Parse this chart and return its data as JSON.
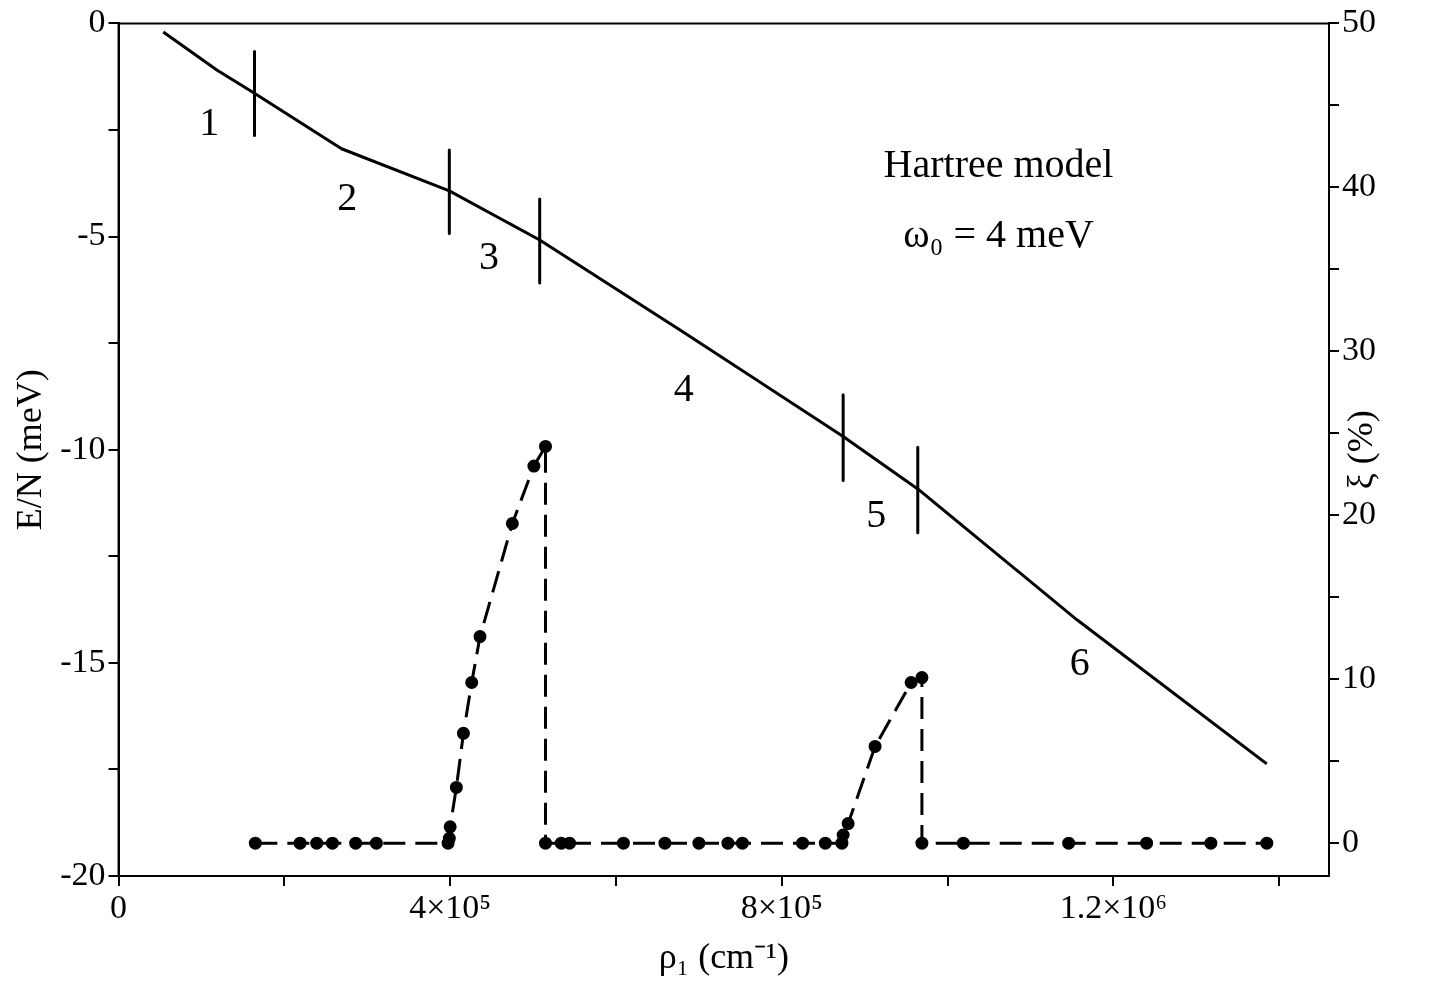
{
  "chart_data": {
    "type": "line",
    "xlabel": "ρ₁ (cm⁻¹)",
    "ylabel": "E/N (meV)",
    "y2label": "ξ (%)",
    "xlim": [
      0,
      1460000
    ],
    "xticks": [
      0,
      {
        "value": 200000,
        "label": null
      },
      {
        "value": 400000,
        "label": "4×10⁵"
      },
      {
        "value": 600000,
        "label": null
      },
      {
        "value": 800000,
        "label": "8×10⁵"
      },
      {
        "value": 1000000,
        "label": null
      },
      {
        "value": 1200000,
        "label": "1.2×10⁶"
      },
      {
        "value": 1400000,
        "label": null
      }
    ],
    "ylim": [
      -20,
      0
    ],
    "yticks": [
      -20,
      {
        "value": -17.5,
        "label": null
      },
      -15,
      {
        "value": -12.5,
        "label": null
      },
      -10,
      {
        "value": -7.5,
        "label": null
      },
      -5,
      {
        "value": -2.5,
        "label": null
      },
      0
    ],
    "y2lim": [
      -2,
      50
    ],
    "y2ticks": [
      0,
      {
        "value": 5,
        "label": null
      },
      10,
      {
        "value": 15,
        "label": null
      },
      20,
      {
        "value": 25,
        "label": null
      },
      30,
      {
        "value": 35,
        "label": null
      },
      40,
      {
        "value": 45,
        "label": null
      },
      50
    ],
    "grid": false,
    "legend": false,
    "series": [
      {
        "color": "#000000",
        "marker": "none",
        "line_style": "solid",
        "x": [
          54000,
          119000,
          164000,
          269000,
          399000,
          508000,
          681000,
          874000,
          964000,
          1156000,
          1385000
        ],
        "values": [
          -0.2,
          -1.1,
          -1.64,
          -2.94,
          -3.93,
          -5.08,
          -7.24,
          -9.69,
          -10.92,
          -13.99,
          -17.37
        ]
      },
      {
        "color": "#000000",
        "marker": "circle",
        "line_style": "dashed",
        "axis": "y2",
        "x": [
          165000,
          219000,
          239000,
          258000,
          286000,
          311000,
          397500,
          399000,
          400000,
          407500,
          416000,
          426000,
          436000,
          475000,
          501000,
          515000,
          515000,
          534000,
          544000,
          609000,
          659000,
          700000,
          735000,
          752500,
          825000,
          852500,
          872500,
          874000,
          880000,
          912500,
          956000,
          969000,
          969000,
          1019000,
          1146000,
          1240000,
          1317500,
          1385000
        ],
        "values": [
          0,
          0,
          0,
          0,
          0,
          0,
          0,
          0.3,
          1.0,
          3.4,
          6.7,
          9.8,
          12.6,
          19.5,
          23.0,
          24.2,
          0,
          0,
          0,
          0,
          0,
          0,
          0,
          0,
          0,
          0,
          0,
          0.5,
          1.2,
          5.9,
          9.8,
          10.1,
          0,
          0,
          0,
          0,
          0,
          0
        ]
      },
      {
        "color": "#000000",
        "marker": "none",
        "line_style": "solid",
        "x": [
          164000,
          164000
        ],
        "values": [
          -0.66,
          -2.63
        ]
      },
      {
        "color": "#000000",
        "marker": "none",
        "line_style": "solid",
        "x": [
          399000,
          399000
        ],
        "values": [
          -2.97,
          -4.93
        ]
      },
      {
        "color": "#000000",
        "marker": "none",
        "line_style": "solid",
        "x": [
          508000,
          508000
        ],
        "values": [
          -4.12,
          -6.09
        ]
      },
      {
        "color": "#000000",
        "marker": "none",
        "line_style": "solid",
        "x": [
          874000,
          874000
        ],
        "values": [
          -8.71,
          -10.72
        ]
      },
      {
        "color": "#000000",
        "marker": "none",
        "line_style": "solid",
        "x": [
          964000,
          964000
        ],
        "values": [
          -9.94,
          -11.95
        ]
      }
    ],
    "annotations": [
      "1",
      "2",
      "3",
      "4",
      "5",
      "6",
      "Hartree model",
      "ω₀ = 4 meV"
    ]
  }
}
